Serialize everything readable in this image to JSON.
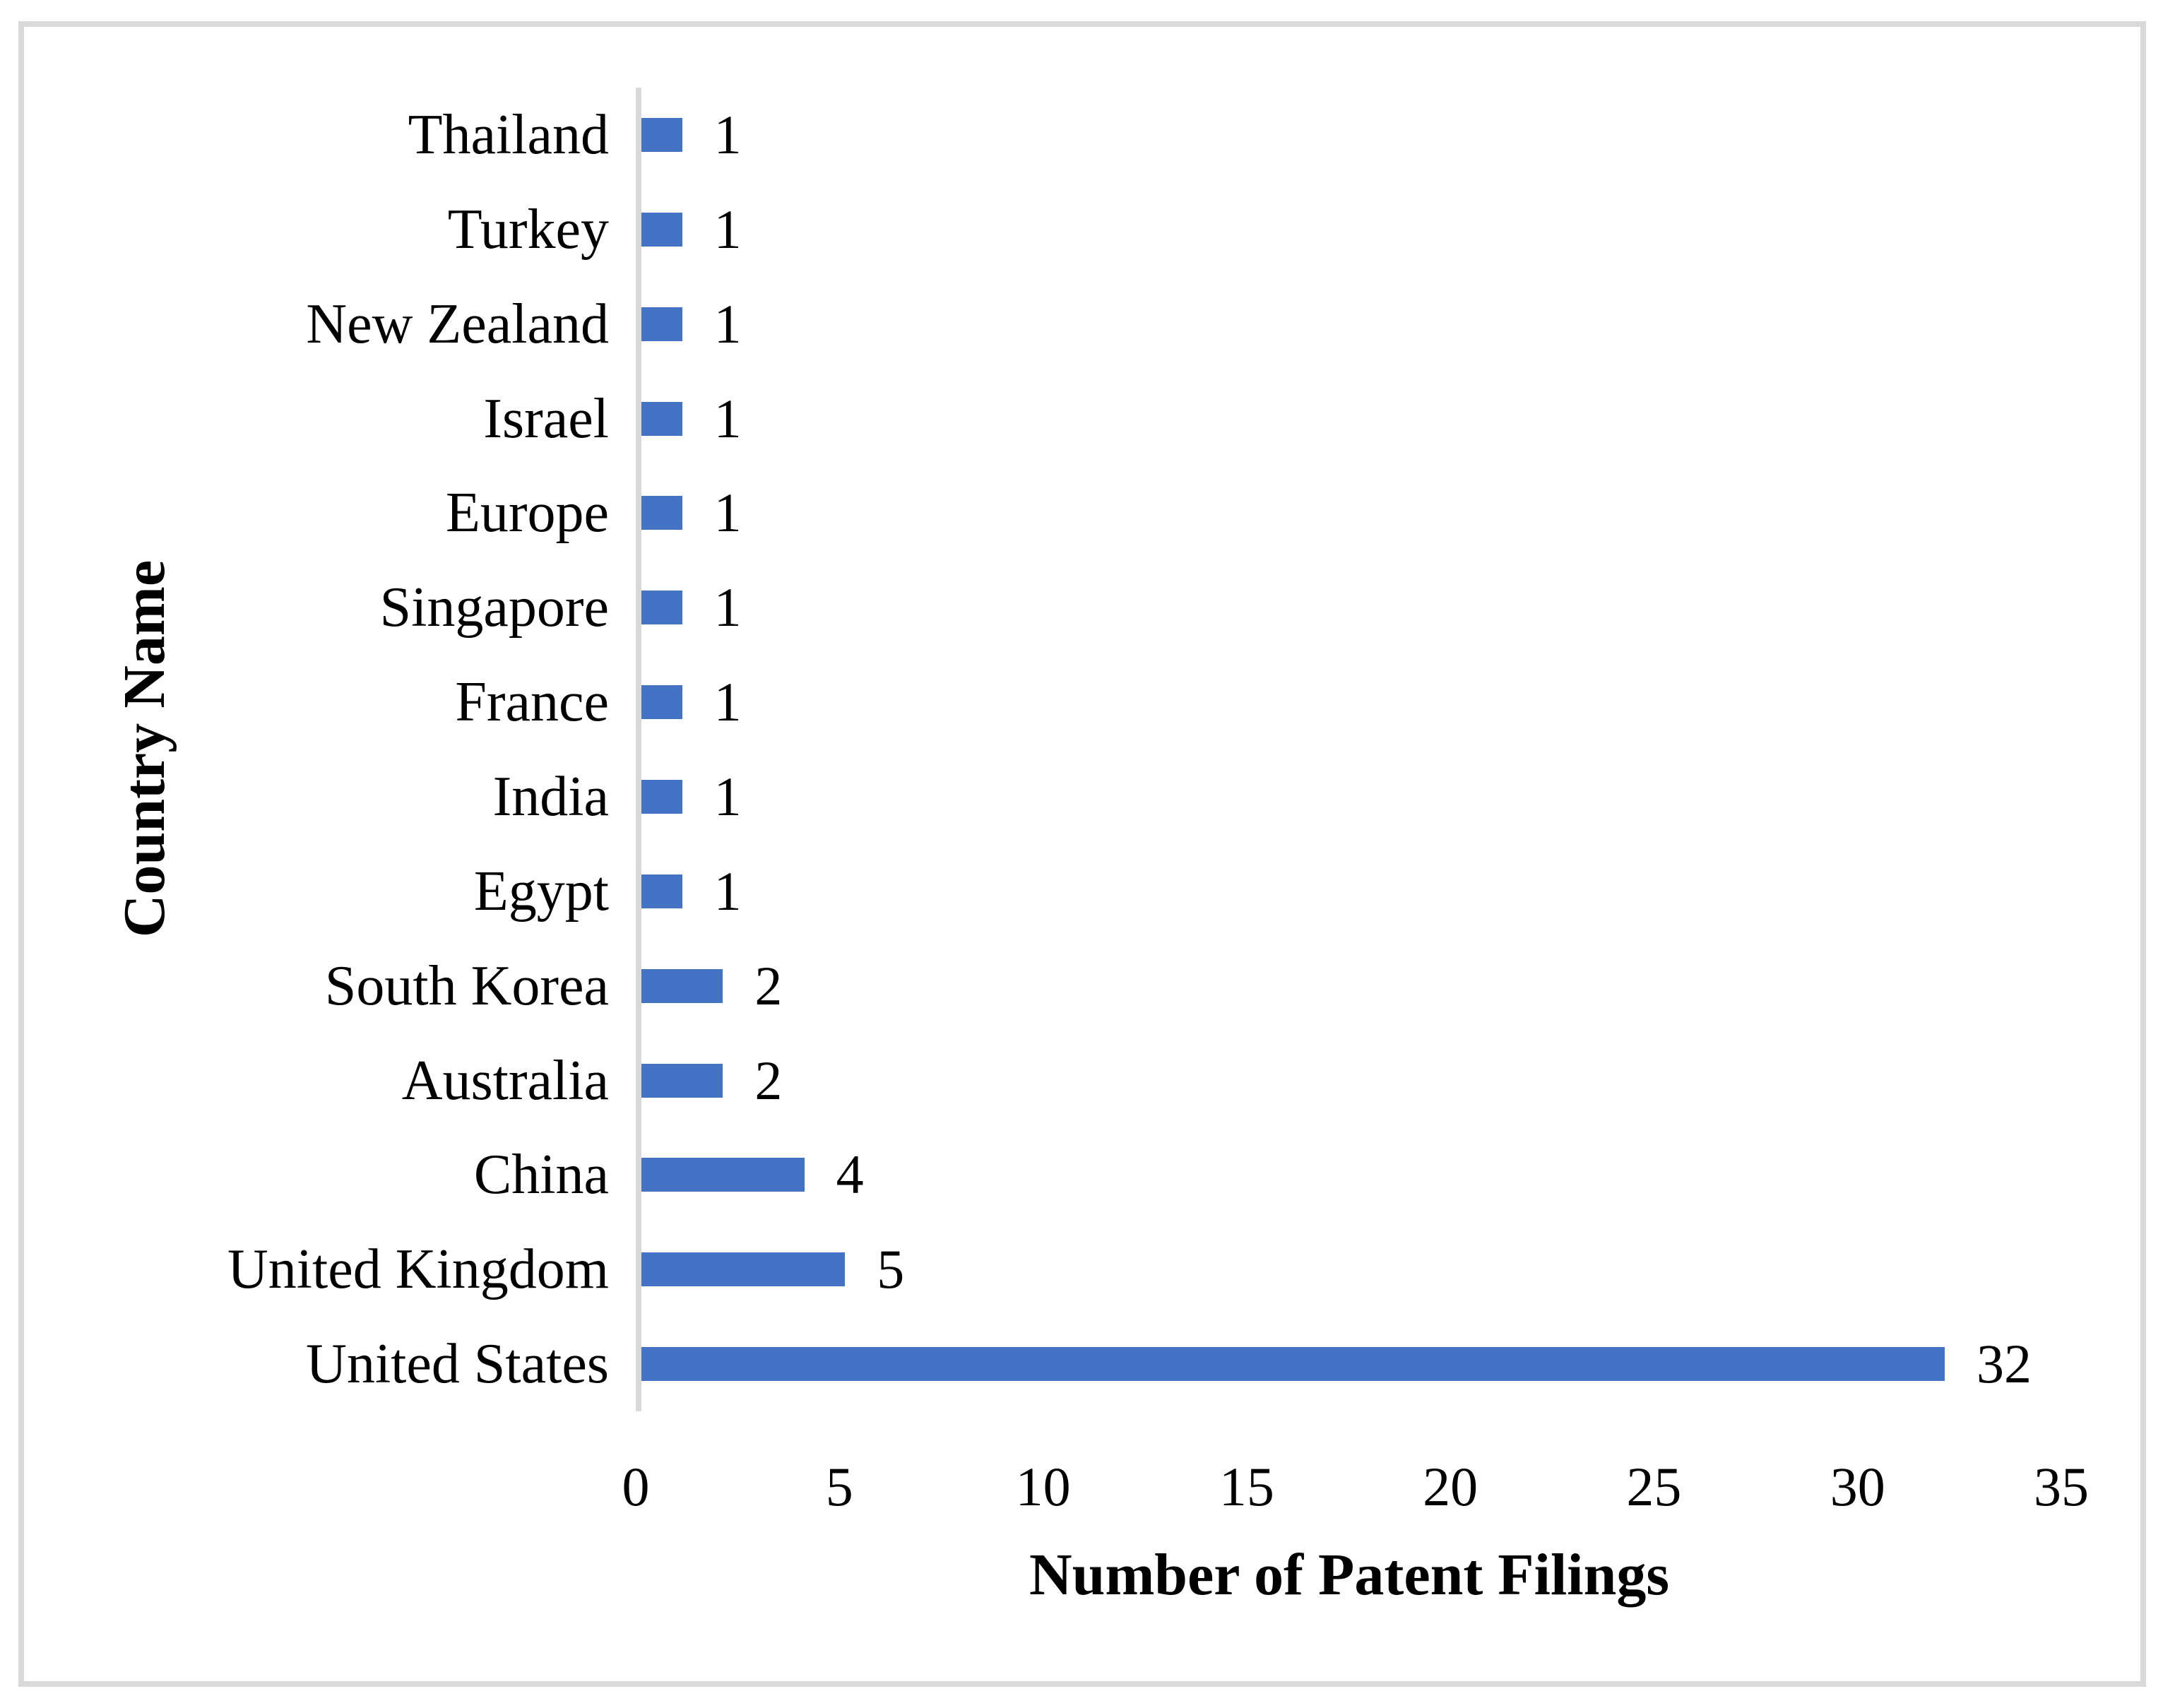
{
  "chart_data": {
    "type": "bar",
    "orientation": "horizontal",
    "categories": [
      "Thailand",
      "Turkey",
      "New Zealand",
      "Israel",
      "Europe",
      "Singapore",
      "France",
      "India",
      "Egypt",
      "South Korea",
      "Australia",
      "China",
      "United Kingdom",
      "United States"
    ],
    "values": [
      1,
      1,
      1,
      1,
      1,
      1,
      1,
      1,
      1,
      2,
      2,
      4,
      5,
      32
    ],
    "data_labels": [
      "1",
      "1",
      "1",
      "1",
      "1",
      "1",
      "1",
      "1",
      "1",
      "2",
      "2",
      "4",
      "5",
      "32"
    ],
    "xlabel": "Number of Patent Filings",
    "ylabel": "Country Name",
    "xlim": [
      0,
      35
    ],
    "x_ticks": [
      "0",
      "5",
      "10",
      "15",
      "20",
      "25",
      "30",
      "35"
    ],
    "x_tick_values": [
      0,
      5,
      10,
      15,
      20,
      25,
      30,
      35
    ],
    "grid": false,
    "legend": false,
    "bar_color": "#4472C4",
    "axis_line_color": "#D9D9D9",
    "border_color": "#D9D9D9",
    "text_color": "#000000"
  }
}
